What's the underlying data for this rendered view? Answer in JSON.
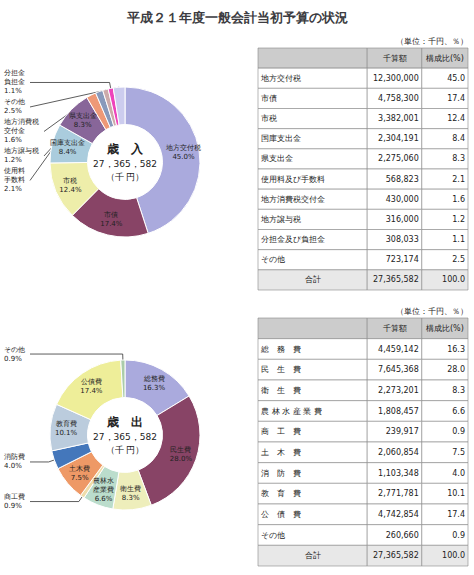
{
  "chart_data": [
    {
      "type": "pie",
      "title": "平成２１年度一般会計当初予算の状況",
      "annotations": [
        "歳　入",
        "27，365，582",
        "（千 円）"
      ],
      "categories": [
        "地方交付税",
        "市債",
        "市税",
        "国庫支出金",
        "県支出金",
        "使用料\n手数料",
        "地方消費税\n交付金",
        "地方譲与税",
        "分担金\n負担金",
        "その他"
      ],
      "values": [
        45.0,
        17.4,
        12.4,
        8.4,
        8.3,
        2.1,
        1.6,
        1.2,
        1.1,
        2.5
      ],
      "value_labels": [
        "45.0%",
        "17.4%",
        "12.4%",
        "8.4%",
        "8.3%",
        "2.1%",
        "1.6%",
        "1.2%",
        "1.1%",
        "2.5%"
      ],
      "colors": [
        "#aaaadd",
        "#884466",
        "#eeeeaa",
        "#aaccdd",
        "#886699",
        "#ee9977",
        "#8899bb",
        "#ccaaaa",
        "#ee44bb",
        "#ccccee"
      ],
      "table": {
        "note": "（単位：千円、％）",
        "headers": [
          "千算額",
          "構成比(%)"
        ],
        "rows": [
          [
            "地方交付税",
            "12,300,000",
            "45.0"
          ],
          [
            "市債",
            "4,758,300",
            "17.4"
          ],
          [
            "市税",
            "3,382,001",
            "12.4"
          ],
          [
            "国庫支出金",
            "2,304,191",
            "8.4"
          ],
          [
            "県支出金",
            "2,275,060",
            "8.3"
          ],
          [
            "使用料及び手数料",
            "568,823",
            "2.1"
          ],
          [
            "地方消費税交付金",
            "430,000",
            "1.6"
          ],
          [
            "地方譲与税",
            "316,000",
            "1.2"
          ],
          [
            "分担金及び負担金",
            "308,033",
            "1.1"
          ],
          [
            "その他",
            "723,174",
            "2.5"
          ]
        ],
        "total_row": [
          "合計",
          "27,365,582",
          "100.0"
        ]
      }
    },
    {
      "type": "pie",
      "annotations": [
        "歳　出",
        "27，365，582",
        "（千 円）"
      ],
      "categories": [
        "総務費",
        "民生費",
        "衛生費",
        "農林水\n産業費",
        "商工費",
        "土木費",
        "消防費",
        "教育費",
        "公債費",
        "その他"
      ],
      "values": [
        16.3,
        28.0,
        8.3,
        6.6,
        0.9,
        7.5,
        4.0,
        10.1,
        17.4,
        0.9
      ],
      "value_labels": [
        "16.3%",
        "28.0%",
        "8.3%",
        "6.6%",
        "0.9%",
        "7.5%",
        "4.0%",
        "10.1%",
        "17.4%",
        "0.9%"
      ],
      "colors": [
        "#aaaadd",
        "#884466",
        "#eeeebb",
        "#bbddcc",
        "#eeddaa",
        "#ee9966",
        "#4477bb",
        "#bbccdd",
        "#eeee99",
        "#aaccaa"
      ],
      "table": {
        "note": "（単位：千円、％）",
        "headers": [
          "千算額",
          "構成比(%)"
        ],
        "rows": [
          [
            "総　務　費",
            "4,459,142",
            "16.3"
          ],
          [
            "民　生　費",
            "7,645,368",
            "28.0"
          ],
          [
            "衛　生　費",
            "2,273,201",
            "8.3"
          ],
          [
            "農 林 水 産 業 費",
            "1,808,457",
            "6.6"
          ],
          [
            "商　工　費",
            "239,917",
            "0.9"
          ],
          [
            "土　木　費",
            "2,060,854",
            "7.5"
          ],
          [
            "消　防　費",
            "1,103,348",
            "4.0"
          ],
          [
            "教　育　費",
            "2,771,781",
            "10.1"
          ],
          [
            "公　債　費",
            "4,742,854",
            "17.4"
          ],
          [
            "その他",
            "260,660",
            "0.9"
          ]
        ],
        "total_row": [
          "合計",
          "27,365,582",
          "100.0"
        ]
      }
    }
  ]
}
